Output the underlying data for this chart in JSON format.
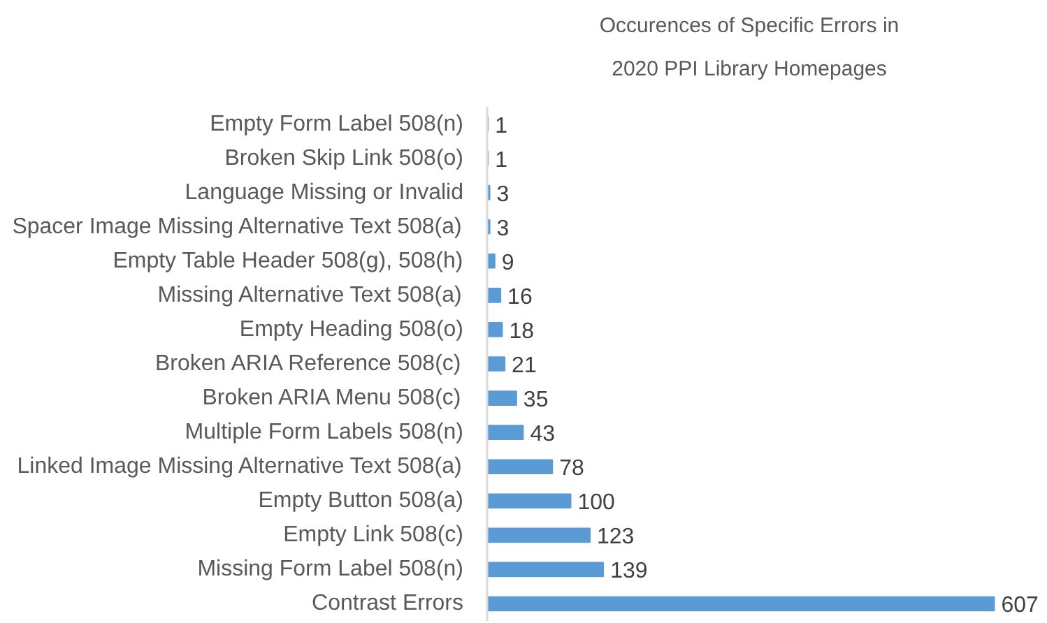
{
  "chart_data": {
    "type": "bar",
    "orientation": "horizontal",
    "title": "Occurences of Specific Errors in 2020 PPI Library Homepages",
    "categories": [
      "Empty Form Label 508(n)",
      "Broken Skip Link 508(o)",
      "Language Missing or Invalid",
      "Spacer Image Missing Alternative Text 508(a)",
      "Empty Table Header 508(g), 508(h)",
      "Missing Alternative Text 508(a)",
      "Empty Heading 508(o)",
      "Broken ARIA Reference 508(c)",
      "Broken ARIA Menu 508(c)",
      "Multiple Form Labels 508(n)",
      "Linked Image Missing Alternative Text 508(a)",
      "Empty Button 508(a)",
      "Empty Link 508(c)",
      "Missing Form Label 508(n)",
      "Contrast Errors"
    ],
    "values": [
      1,
      1,
      3,
      3,
      9,
      16,
      18,
      21,
      35,
      43,
      78,
      100,
      123,
      139,
      607
    ],
    "color": "#5b9bd5",
    "data_labels": true,
    "tick_labels": "y"
  }
}
